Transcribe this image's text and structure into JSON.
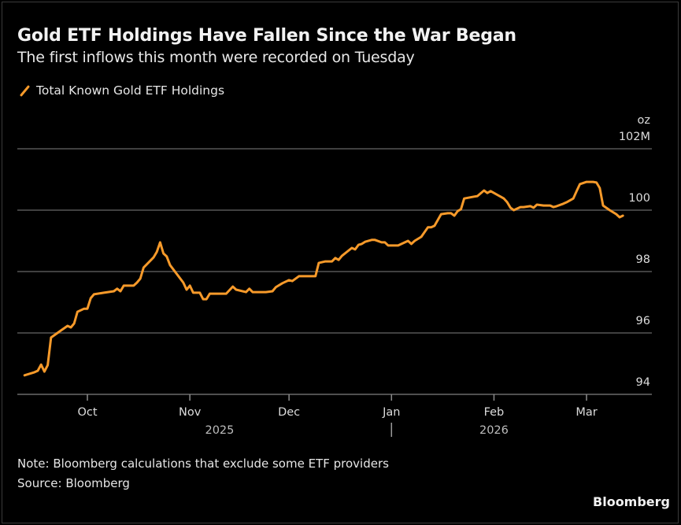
{
  "header": {
    "title": "Gold ETF Holdings Have Fallen Since the War Began",
    "subtitle": "The first inflows this month were recorded on Tuesday"
  },
  "footer": {
    "note": "Note: Bloomberg calculations that exclude some ETF providers",
    "source": "Source: Bloomberg",
    "brand": "Bloomberg"
  },
  "colors": {
    "line": "#f79a2a",
    "gridline": "#555555",
    "background": "#000000"
  },
  "chart_data": {
    "type": "line",
    "title": "Gold ETF Holdings Have Fallen Since the War Began",
    "subtitle": "The first inflows this month were recorded on Tuesday",
    "xlabel": "",
    "ylabel": "oz",
    "y_unit_label": "oz",
    "ylim": [
      94,
      102
    ],
    "y_ticks": [
      {
        "value": 102,
        "label": "102M"
      },
      {
        "value": 100,
        "label": "100"
      },
      {
        "value": 98,
        "label": "98"
      },
      {
        "value": 96,
        "label": "96"
      },
      {
        "value": 94,
        "label": "94"
      }
    ],
    "x_range": [
      "2025-09-10",
      "2026-03-20"
    ],
    "x_ticks": [
      {
        "date": "2025-10-01",
        "label": "Oct"
      },
      {
        "date": "2025-11-01",
        "label": "Nov"
      },
      {
        "date": "2025-12-01",
        "label": "Dec"
      },
      {
        "date": "2026-01-01",
        "label": "Jan"
      },
      {
        "date": "2026-02-01",
        "label": "Feb"
      },
      {
        "date": "2026-03-01",
        "label": "Mar"
      }
    ],
    "year_labels": [
      {
        "date": "2025-11-10",
        "label": "2025"
      },
      {
        "date": "2026-02-01",
        "label": "2026"
      }
    ],
    "year_divider": "2026-01-01",
    "grid": true,
    "legend": {
      "position": "top-left",
      "entries": [
        "Total Known Gold ETF Holdings"
      ]
    },
    "series": [
      {
        "name": "Total Known Gold ETF Holdings",
        "unit": "million oz",
        "points": [
          [
            "2025-09-12",
            94.62
          ],
          [
            "2025-09-15",
            94.72
          ],
          [
            "2025-09-16",
            94.77
          ],
          [
            "2025-09-17",
            94.97
          ],
          [
            "2025-09-18",
            94.74
          ],
          [
            "2025-09-19",
            94.95
          ],
          [
            "2025-09-20",
            95.85
          ],
          [
            "2025-09-23",
            96.08
          ],
          [
            "2025-09-25",
            96.23
          ],
          [
            "2025-09-26",
            96.18
          ],
          [
            "2025-09-27",
            96.31
          ],
          [
            "2025-09-28",
            96.69
          ],
          [
            "2025-09-30",
            96.79
          ],
          [
            "2025-10-01",
            96.79
          ],
          [
            "2025-10-02",
            97.13
          ],
          [
            "2025-10-03",
            97.26
          ],
          [
            "2025-10-06",
            97.31
          ],
          [
            "2025-10-09",
            97.36
          ],
          [
            "2025-10-10",
            97.44
          ],
          [
            "2025-10-11",
            97.36
          ],
          [
            "2025-10-12",
            97.54
          ],
          [
            "2025-10-15",
            97.54
          ],
          [
            "2025-10-16",
            97.64
          ],
          [
            "2025-10-17",
            97.77
          ],
          [
            "2025-10-18",
            98.13
          ],
          [
            "2025-10-21",
            98.46
          ],
          [
            "2025-10-22",
            98.64
          ],
          [
            "2025-10-23",
            98.95
          ],
          [
            "2025-10-24",
            98.59
          ],
          [
            "2025-10-25",
            98.49
          ],
          [
            "2025-10-26",
            98.21
          ],
          [
            "2025-10-30",
            97.64
          ],
          [
            "2025-10-31",
            97.41
          ],
          [
            "2025-11-01",
            97.54
          ],
          [
            "2025-11-02",
            97.31
          ],
          [
            "2025-11-04",
            97.31
          ],
          [
            "2025-11-05",
            97.1
          ],
          [
            "2025-11-06",
            97.1
          ],
          [
            "2025-11-07",
            97.28
          ],
          [
            "2025-11-12",
            97.28
          ],
          [
            "2025-11-14",
            97.51
          ],
          [
            "2025-11-15",
            97.41
          ],
          [
            "2025-11-18",
            97.33
          ],
          [
            "2025-11-19",
            97.44
          ],
          [
            "2025-11-20",
            97.33
          ],
          [
            "2025-11-24",
            97.33
          ],
          [
            "2025-11-26",
            97.36
          ],
          [
            "2025-11-27",
            97.49
          ],
          [
            "2025-11-29",
            97.62
          ],
          [
            "2025-12-01",
            97.72
          ],
          [
            "2025-12-02",
            97.69
          ],
          [
            "2025-12-04",
            97.85
          ],
          [
            "2025-12-09",
            97.85
          ],
          [
            "2025-12-10",
            98.28
          ],
          [
            "2025-12-12",
            98.33
          ],
          [
            "2025-12-14",
            98.33
          ],
          [
            "2025-12-15",
            98.44
          ],
          [
            "2025-12-16",
            98.38
          ],
          [
            "2025-12-17",
            98.51
          ],
          [
            "2025-12-20",
            98.77
          ],
          [
            "2025-12-21",
            98.72
          ],
          [
            "2025-12-22",
            98.87
          ],
          [
            "2025-12-23",
            98.9
          ],
          [
            "2025-12-24",
            98.97
          ],
          [
            "2025-12-26",
            99.03
          ],
          [
            "2025-12-27",
            99.03
          ],
          [
            "2025-12-29",
            98.95
          ],
          [
            "2025-12-30",
            98.95
          ],
          [
            "2025-12-31",
            98.85
          ],
          [
            "2026-01-03",
            98.85
          ],
          [
            "2026-01-04",
            98.9
          ],
          [
            "2026-01-06",
            99.0
          ],
          [
            "2026-01-07",
            98.9
          ],
          [
            "2026-01-08",
            99.0
          ],
          [
            "2026-01-10",
            99.13
          ],
          [
            "2026-01-12",
            99.44
          ],
          [
            "2026-01-13",
            99.44
          ],
          [
            "2026-01-14",
            99.49
          ],
          [
            "2026-01-16",
            99.87
          ],
          [
            "2026-01-18",
            99.9
          ],
          [
            "2026-01-19",
            99.9
          ],
          [
            "2026-01-20",
            99.82
          ],
          [
            "2026-01-21",
            99.97
          ],
          [
            "2026-01-22",
            100.03
          ],
          [
            "2026-01-23",
            100.38
          ],
          [
            "2026-01-26",
            100.44
          ],
          [
            "2026-01-27",
            100.46
          ],
          [
            "2026-01-29",
            100.64
          ],
          [
            "2026-01-30",
            100.56
          ],
          [
            "2026-01-31",
            100.62
          ],
          [
            "2026-02-03",
            100.44
          ],
          [
            "2026-02-04",
            100.38
          ],
          [
            "2026-02-05",
            100.26
          ],
          [
            "2026-02-06",
            100.08
          ],
          [
            "2026-02-07",
            100.0
          ],
          [
            "2026-02-09",
            100.1
          ],
          [
            "2026-02-10",
            100.1
          ],
          [
            "2026-02-12",
            100.13
          ],
          [
            "2026-02-13",
            100.08
          ],
          [
            "2026-02-14",
            100.18
          ],
          [
            "2026-02-16",
            100.15
          ],
          [
            "2026-02-18",
            100.15
          ],
          [
            "2026-02-19",
            100.1
          ],
          [
            "2026-02-20",
            100.13
          ],
          [
            "2026-02-22",
            100.21
          ],
          [
            "2026-02-23",
            100.26
          ],
          [
            "2026-02-25",
            100.38
          ],
          [
            "2026-02-26",
            100.62
          ],
          [
            "2026-02-27",
            100.85
          ],
          [
            "2026-03-01",
            100.92
          ],
          [
            "2026-03-03",
            100.92
          ],
          [
            "2026-03-04",
            100.9
          ],
          [
            "2026-03-05",
            100.72
          ],
          [
            "2026-03-06",
            100.15
          ],
          [
            "2026-03-08",
            100.0
          ],
          [
            "2026-03-10",
            99.87
          ],
          [
            "2026-03-11",
            99.77
          ],
          [
            "2026-03-12",
            99.82
          ]
        ]
      }
    ]
  }
}
